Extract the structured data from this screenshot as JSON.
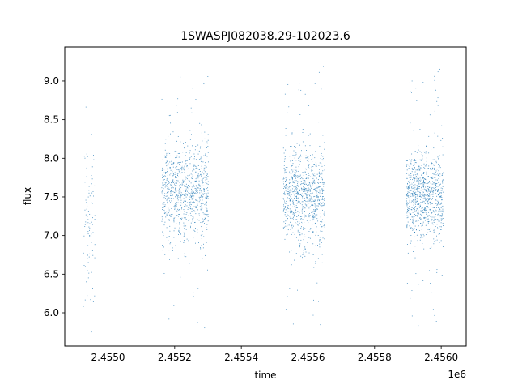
{
  "chart_data": {
    "type": "scatter",
    "title": "1SWASPJ082038.29-102023.6",
    "xlabel": "time",
    "ylabel": "flux",
    "x_offset_label": "1e6",
    "xlim": [
      2454870,
      2456075
    ],
    "ylim": [
      5.57,
      9.44
    ],
    "x_ticks": [
      2.455,
      2.4552,
      2.4554,
      2.4556,
      2.4558,
      2.456
    ],
    "x_tick_labels": [
      "2.4550",
      "2.4552",
      "2.4554",
      "2.4556",
      "2.4558",
      "2.4560"
    ],
    "y_ticks": [
      6.0,
      6.5,
      7.0,
      7.5,
      8.0,
      8.5,
      9.0
    ],
    "y_tick_labels": [
      "6.0",
      "6.5",
      "7.0",
      "7.5",
      "8.0",
      "8.5",
      "9.0"
    ],
    "grid": false,
    "marker_color": "#1f77b4",
    "observing_seasons": [
      {
        "x_start": 2454925,
        "x_end": 2454960,
        "flux_center": 7.2,
        "flux_spread": 0.55
      },
      {
        "x_start": 2455160,
        "x_end": 2455300,
        "flux_center": 7.55,
        "flux_spread": 0.32
      },
      {
        "x_start": 2455525,
        "x_end": 2455650,
        "flux_center": 7.5,
        "flux_spread": 0.32
      },
      {
        "x_start": 2455895,
        "x_end": 2456005,
        "flux_center": 7.5,
        "flux_spread": 0.28
      }
    ]
  }
}
